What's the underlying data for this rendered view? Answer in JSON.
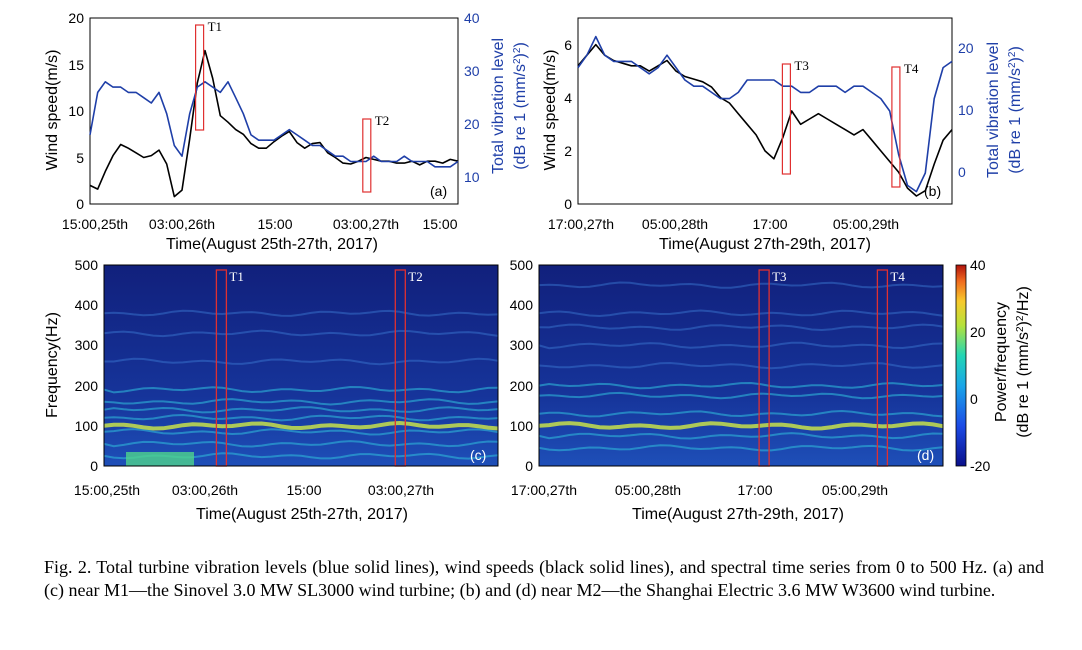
{
  "caption": "Fig. 2. Total turbine vibration levels (blue solid lines), wind speeds (black solid lines), and spectral time series from 0 to 500 Hz. (a) and (c) near M1—the Sinovel 3.0 MW SL3000 wind turbine; (b) and (d) near M2—the Shanghai Electric 3.6 MW W3600 wind turbine.",
  "colors": {
    "wind": "#000000",
    "vibration": "#1f3fa8",
    "marker": "#e03030",
    "spectrogram_bg": "#13207a"
  },
  "chart_data": [
    {
      "type": "line",
      "panel_label": "(a)",
      "xlabel": "Time(August 25th-27th, 2017)",
      "x_ticks": [
        "15:00,25th",
        "03:00,26th",
        "15:00",
        "03:00,27th",
        "15:00"
      ],
      "ylabel": "Wind speed(m/s)",
      "y_ticks": [
        "0",
        "5",
        "10",
        "15",
        "20"
      ],
      "ylim": [
        0,
        20
      ],
      "ylabel_right": "Total vibration level (dB re 1 (mm/s2)2)",
      "y2_ticks": [
        "10",
        "20",
        "30",
        "40"
      ],
      "y2lim": [
        5,
        40
      ],
      "markers": [
        {
          "label": "T1",
          "x": 14.3
        },
        {
          "label": "T2",
          "x": 36.1
        }
      ],
      "series": [
        {
          "axis": "left",
          "color": "#000000",
          "x": [
            0,
            1,
            2,
            3,
            4,
            5,
            6,
            7,
            8,
            9,
            10,
            11,
            12,
            13,
            14,
            15,
            16,
            17,
            18,
            19,
            20,
            21,
            22,
            23,
            24,
            25,
            26,
            27,
            28,
            29,
            30,
            31,
            32,
            33,
            34,
            35,
            36,
            37,
            38,
            39,
            40,
            41,
            42,
            43,
            44,
            45,
            46,
            47,
            48
          ],
          "values": [
            2.0,
            1.6,
            3.5,
            5.2,
            6.4,
            6.0,
            5.5,
            5.0,
            5.2,
            5.8,
            4.3,
            0.8,
            1.5,
            7.0,
            13.0,
            16.5,
            13.5,
            9.5,
            8.8,
            8.0,
            7.5,
            6.5,
            6.0,
            6.0,
            6.7,
            7.3,
            7.8,
            6.6,
            6.0,
            6.5,
            6.6,
            5.5,
            5.0,
            4.4,
            4.3,
            4.6,
            5.0,
            4.8,
            4.6,
            4.6,
            4.4,
            4.4,
            4.6,
            4.2,
            4.6,
            4.6,
            4.4,
            4.8,
            4.6
          ]
        },
        {
          "axis": "right",
          "color": "#1f3fa8",
          "x": [
            0,
            1,
            2,
            3,
            4,
            5,
            6,
            7,
            8,
            9,
            10,
            11,
            12,
            13,
            14,
            15,
            16,
            17,
            18,
            19,
            20,
            21,
            22,
            23,
            24,
            25,
            26,
            27,
            28,
            29,
            30,
            31,
            32,
            33,
            34,
            35,
            36,
            37,
            38,
            39,
            40,
            41,
            42,
            43,
            44,
            45,
            46,
            47,
            48
          ],
          "values": [
            18,
            26,
            28,
            27,
            27,
            26,
            26,
            25,
            24,
            26,
            22,
            16,
            14,
            22,
            27,
            28,
            27,
            26,
            28,
            25,
            22,
            18,
            17,
            17,
            17,
            18,
            19,
            18,
            17,
            16,
            16,
            15,
            14,
            14,
            13,
            13,
            13,
            14,
            13,
            13,
            13,
            14,
            13,
            13,
            13,
            12,
            12,
            12,
            13
          ]
        }
      ]
    },
    {
      "type": "line",
      "panel_label": "(b)",
      "xlabel": "Time(August 27th-29th, 2017)",
      "x_ticks": [
        "17:00,27th",
        "05:00,28th",
        "17:00",
        "05:00,29th"
      ],
      "ylabel": "Wind speed(m/s)",
      "y_ticks": [
        "0",
        "2",
        "4",
        "6"
      ],
      "ylim": [
        0,
        7
      ],
      "ylabel_right": "Total vibration level (dB re 1 (mm/s2)2)",
      "y2_ticks": [
        "0",
        "10",
        "20"
      ],
      "y2lim": [
        -5,
        25
      ],
      "markers": [
        {
          "label": "T3",
          "x": 23.4
        },
        {
          "label": "T4",
          "x": 35.7
        }
      ],
      "series": [
        {
          "axis": "left",
          "color": "#000000",
          "x": [
            0,
            1,
            2,
            3,
            4,
            5,
            6,
            7,
            8,
            9,
            10,
            11,
            12,
            13,
            14,
            15,
            16,
            17,
            18,
            19,
            20,
            21,
            22,
            23,
            24,
            25,
            26,
            27,
            28,
            29,
            30,
            31,
            32,
            33,
            34,
            35,
            36,
            37,
            38,
            39,
            40,
            41,
            42
          ],
          "values": [
            5.2,
            5.6,
            6.0,
            5.6,
            5.4,
            5.3,
            5.2,
            5.2,
            5.0,
            5.2,
            5.4,
            5.0,
            4.8,
            4.7,
            4.6,
            4.4,
            4.0,
            3.8,
            3.4,
            3.0,
            2.6,
            2.0,
            1.7,
            2.5,
            3.5,
            3.0,
            3.2,
            3.4,
            3.2,
            3.0,
            2.8,
            2.6,
            2.8,
            2.4,
            2.0,
            1.6,
            1.2,
            0.6,
            0.3,
            0.5,
            1.5,
            2.4,
            2.8
          ]
        },
        {
          "axis": "right",
          "color": "#1f3fa8",
          "x": [
            0,
            1,
            2,
            3,
            4,
            5,
            6,
            7,
            8,
            9,
            10,
            11,
            12,
            13,
            14,
            15,
            16,
            17,
            18,
            19,
            20,
            21,
            22,
            23,
            24,
            25,
            26,
            27,
            28,
            29,
            30,
            31,
            32,
            33,
            34,
            35,
            36,
            37,
            38,
            39,
            40,
            41,
            42
          ],
          "values": [
            17,
            19,
            22,
            19,
            18,
            18,
            18,
            17,
            16,
            17,
            19,
            17,
            15,
            14,
            14,
            13,
            12,
            12,
            13,
            15,
            15,
            15,
            15,
            14,
            14,
            13,
            13,
            14,
            14,
            14,
            13,
            14,
            14,
            13,
            12,
            10,
            3,
            -2,
            -3,
            0,
            12,
            17,
            18
          ]
        }
      ]
    },
    {
      "type": "heatmap",
      "panel_label": "(c)",
      "xlabel": "Time(August 25th-27th, 2017)",
      "x_ticks": [
        "15:00,25th",
        "03:00,26th",
        "15:00",
        "03:00,27th"
      ],
      "ylabel": "Frequency(Hz)",
      "y_ticks": [
        "0",
        "100",
        "200",
        "300",
        "400",
        "500"
      ],
      "ylim": [
        0,
        500
      ],
      "markers": [
        {
          "label": "T1",
          "x": 14.3
        },
        {
          "label": "T2",
          "x": 36.1
        }
      ],
      "bands_hz": [
        25,
        55,
        85,
        100,
        120,
        140,
        160,
        190,
        260,
        330,
        380
      ]
    },
    {
      "type": "heatmap",
      "panel_label": "(d)",
      "xlabel": "Time(August 27th-29th, 2017)",
      "x_ticks": [
        "17:00,27th",
        "05:00,28th",
        "17:00",
        "05:00,29th"
      ],
      "ylabel": "Frequency(Hz)",
      "y_ticks": [
        "0",
        "100",
        "200",
        "300",
        "400",
        "500"
      ],
      "ylim": [
        0,
        500
      ],
      "markers": [
        {
          "label": "T3",
          "x": 23.4
        },
        {
          "label": "T4",
          "x": 35.7
        }
      ],
      "bands_hz": [
        45,
        75,
        100,
        130,
        175,
        200,
        250,
        300,
        345,
        380,
        450
      ],
      "colorbar": {
        "label": "Power/frequency (dB re 1 (mm/s2)2/Hz)",
        "ticks": [
          "40",
          "20",
          "0",
          "-20"
        ],
        "range": [
          -20,
          40
        ]
      }
    }
  ]
}
